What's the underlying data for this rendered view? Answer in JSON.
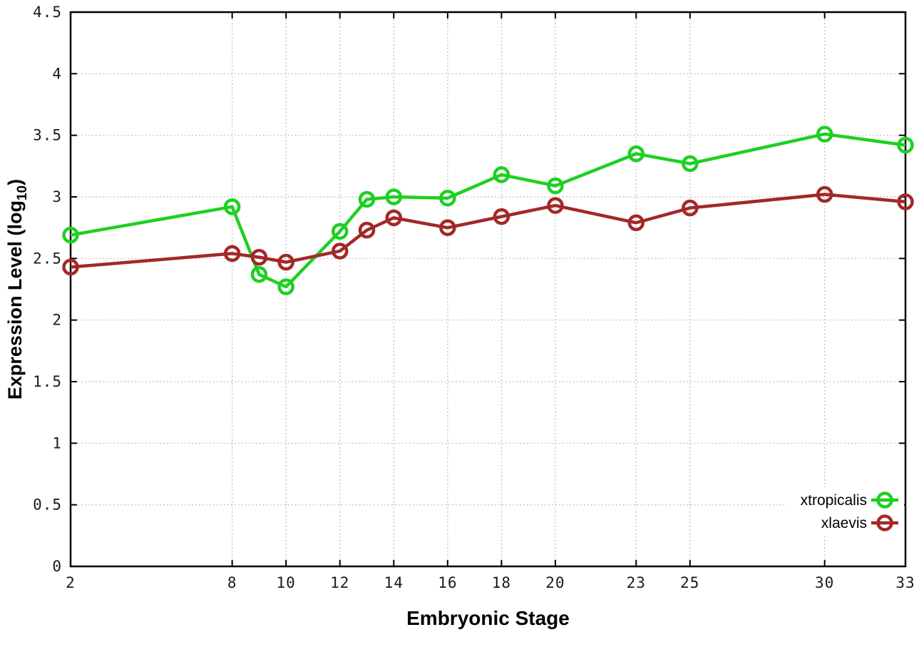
{
  "chart_data": {
    "type": "line",
    "title": "",
    "xlabel": "Embryonic Stage",
    "ylabel_parts": {
      "prefix": "Expression Level (log",
      "subscript": "10",
      "suffix": ")"
    },
    "x": [
      2,
      8,
      9,
      10,
      12,
      13,
      14,
      16,
      18,
      20,
      23,
      25,
      30,
      33
    ],
    "series": [
      {
        "name": "xtropicalis",
        "color": "#1ed021",
        "values": [
          2.69,
          2.92,
          2.37,
          2.27,
          2.72,
          2.98,
          3.0,
          2.99,
          3.18,
          3.09,
          3.35,
          3.27,
          3.51,
          3.42
        ]
      },
      {
        "name": "xlaevis",
        "color": "#a32828",
        "values": [
          2.43,
          2.54,
          2.51,
          2.47,
          2.56,
          2.73,
          2.83,
          2.75,
          2.84,
          2.93,
          2.79,
          2.91,
          3.02,
          2.96
        ]
      }
    ],
    "x_ticks": {
      "positions": [
        2,
        8,
        10,
        12,
        14,
        16,
        18,
        20,
        23,
        25,
        30,
        33
      ],
      "labels": [
        "2",
        "8",
        "10",
        "12",
        "14",
        "16",
        "18",
        "20",
        "23",
        "25",
        "30",
        "33"
      ]
    },
    "y_ticks": {
      "positions": [
        0,
        0.5,
        1,
        1.5,
        2,
        2.5,
        3,
        3.5,
        4,
        4.5
      ],
      "labels": [
        "0",
        "0.5",
        "1",
        "1.5",
        "2",
        "2.5",
        "3",
        "3.5",
        "4",
        "4.5"
      ]
    },
    "xlim": [
      2,
      33
    ],
    "ylim": [
      0,
      4.5
    ],
    "grid": true,
    "legend_position": "bottom-right",
    "background": "#ffffff",
    "border_color": "#000000",
    "grid_color": "#aaaaaa",
    "tick_label_color": "#1a1a1a",
    "axis_label_color": "#000000"
  }
}
